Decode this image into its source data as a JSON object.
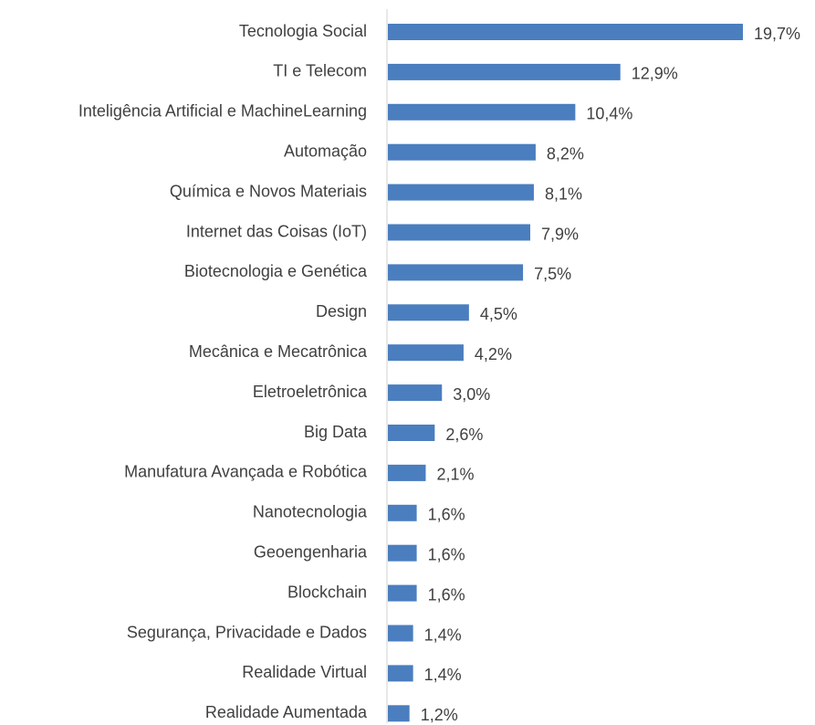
{
  "chart_data": {
    "type": "barh",
    "color": "#4a7ebf",
    "categories": [
      "Tecnologia Social",
      "TI e Telecom",
      "Inteligência Artificial e MachineLearning",
      "Automação",
      "Química e Novos Materiais",
      "Internet das Coisas (IoT)",
      "Biotecnologia e Genética",
      "Design",
      "Mecânica e Mecatrônica",
      "Eletroeletrônica",
      "Big Data",
      "Manufatura Avançada e Robótica",
      "Nanotecnologia",
      "Geoengenharia",
      "Blockchain",
      "Segurança, Privacidade e Dados",
      "Realidade Virtual",
      "Realidade Aumentada"
    ],
    "values": [
      19.7,
      12.9,
      10.4,
      8.2,
      8.1,
      7.9,
      7.5,
      4.5,
      4.2,
      3.0,
      2.6,
      2.1,
      1.6,
      1.6,
      1.6,
      1.4,
      1.4,
      1.2
    ],
    "value_labels": [
      "19,7%",
      "12,9%",
      "10,4%",
      "8,2%",
      "8,1%",
      "7,9%",
      "7,5%",
      "4,5%",
      "4,2%",
      "3,0%",
      "2,6%",
      "2,1%",
      "1,6%",
      "1,6%",
      "1,6%",
      "1,4%",
      "1,4%",
      "1,2%"
    ]
  }
}
